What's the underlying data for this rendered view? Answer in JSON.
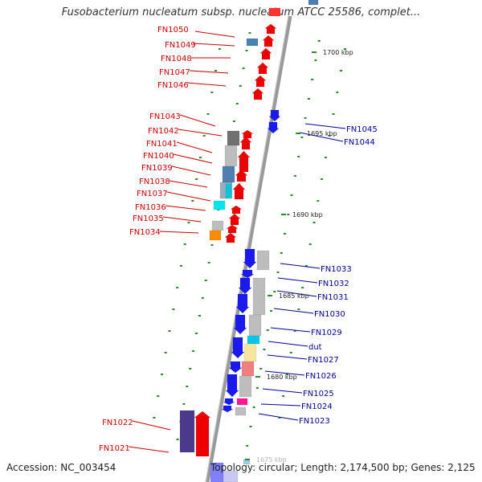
{
  "title": "Fusobacterium nucleatum subsp. nucleatum ATCC 25586, complet...",
  "accession": "Accession: NC_003454",
  "topology": "Topology: circular; Length: 2,174,500 bp; Genes: 2,125",
  "colors": {
    "left_gene": "#cc0000",
    "right_gene": "#000099",
    "backbone": "#888888",
    "tick": "#2e8b2e"
  },
  "kbp_ticks": [
    "1700 kbp",
    "1695 kbp",
    "1690 kbp",
    "1685 kbp",
    "1680 kbp",
    "1675 kbp"
  ],
  "left_genes": [
    "FN1050",
    "FN1049",
    "FN1048",
    "FN1047",
    "FN1046",
    "FN1043",
    "FN1042",
    "FN1041",
    "FN1040",
    "FN1039",
    "FN1038",
    "FN1037",
    "FN1036",
    "FN1035",
    "FN1034",
    "FN1022",
    "FN1021"
  ],
  "right_genes": [
    "FN1045",
    "FN1044",
    "FN1033",
    "FN1032",
    "FN1031",
    "FN1030",
    "FN1029",
    "dut",
    "FN1027",
    "FN1026",
    "FN1025",
    "FN1024",
    "FN1023"
  ]
}
